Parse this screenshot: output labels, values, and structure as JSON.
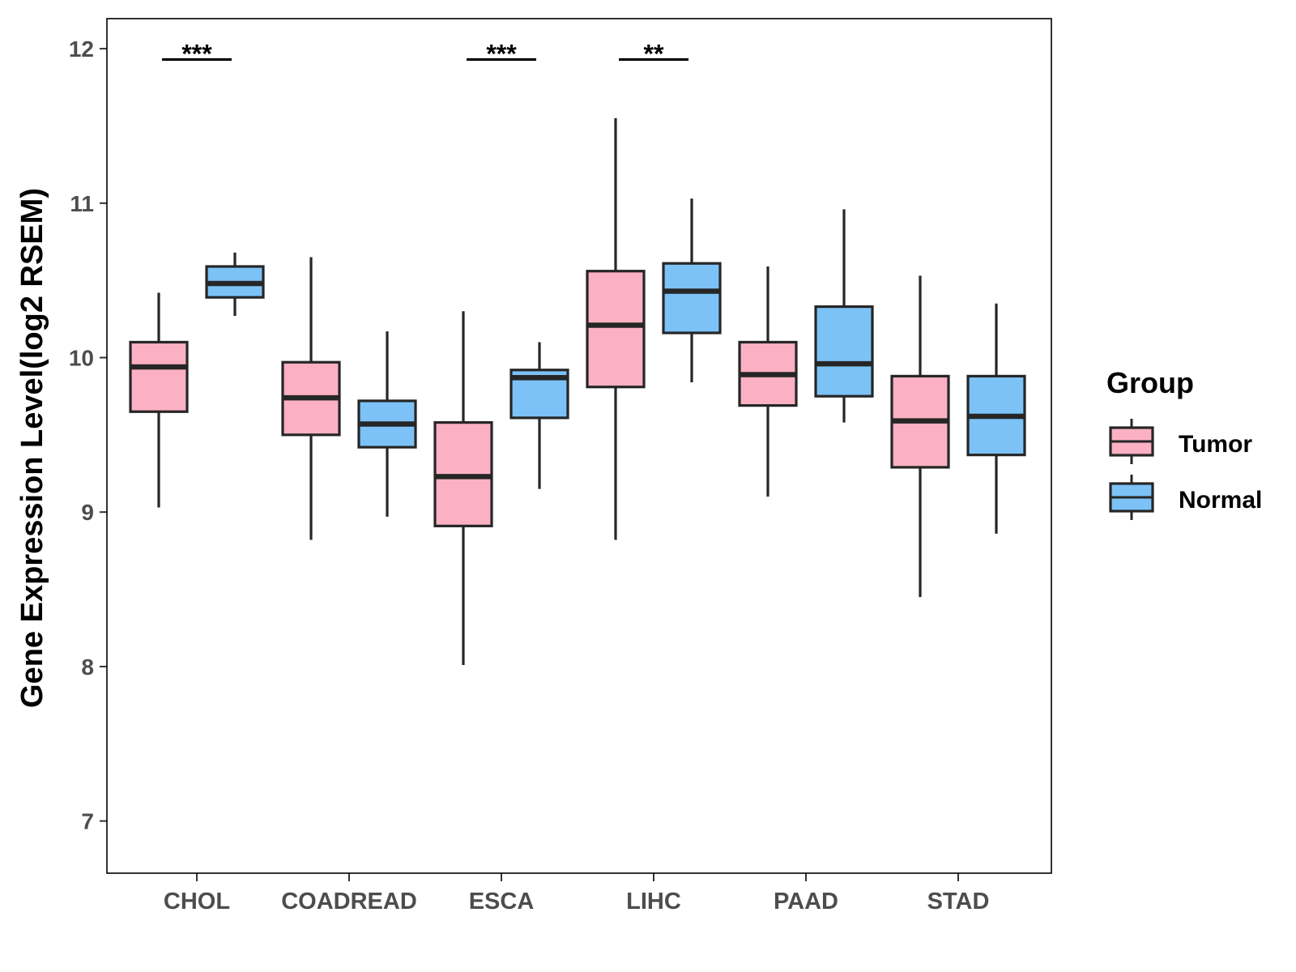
{
  "chart_data": {
    "type": "boxplot",
    "title": "",
    "xlabel": "",
    "ylabel": "Gene Expression Level(log2 RSEM)",
    "ylim": [
      6.65,
      12.2
    ],
    "yticks": [
      7,
      8,
      9,
      10,
      11,
      12
    ],
    "categories": [
      "CHOL",
      "COADREAD",
      "ESCA",
      "LIHC",
      "PAAD",
      "STAD"
    ],
    "legend": {
      "title": "Group",
      "position": "right",
      "entries": [
        {
          "name": "Tumor",
          "color": "#FBB1C3"
        },
        {
          "name": "Normal",
          "color": "#7CC2F7"
        }
      ]
    },
    "series": [
      {
        "name": "Tumor",
        "color": "#FBB1C3",
        "boxes": [
          {
            "category": "CHOL",
            "whisker_low": 9.03,
            "q1": 9.65,
            "median": 9.94,
            "q3": 10.1,
            "whisker_high": 10.42
          },
          {
            "category": "COADREAD",
            "whisker_low": 8.82,
            "q1": 9.5,
            "median": 9.74,
            "q3": 9.97,
            "whisker_high": 10.65
          },
          {
            "category": "ESCA",
            "whisker_low": 8.01,
            "q1": 8.91,
            "median": 9.23,
            "q3": 9.58,
            "whisker_high": 10.3
          },
          {
            "category": "LIHC",
            "whisker_low": 8.82,
            "q1": 9.81,
            "median": 10.21,
            "q3": 10.56,
            "whisker_high": 11.55
          },
          {
            "category": "PAAD",
            "whisker_low": 9.1,
            "q1": 9.69,
            "median": 9.89,
            "q3": 10.1,
            "whisker_high": 10.59
          },
          {
            "category": "STAD",
            "whisker_low": 8.45,
            "q1": 9.29,
            "median": 9.59,
            "q3": 9.88,
            "whisker_high": 10.53
          }
        ]
      },
      {
        "name": "Normal",
        "color": "#7CC2F7",
        "boxes": [
          {
            "category": "CHOL",
            "whisker_low": 10.27,
            "q1": 10.39,
            "median": 10.48,
            "q3": 10.59,
            "whisker_high": 10.68
          },
          {
            "category": "COADREAD",
            "whisker_low": 8.97,
            "q1": 9.42,
            "median": 9.57,
            "q3": 9.72,
            "whisker_high": 10.17
          },
          {
            "category": "ESCA",
            "whisker_low": 9.15,
            "q1": 9.61,
            "median": 9.87,
            "q3": 9.92,
            "whisker_high": 10.1
          },
          {
            "category": "LIHC",
            "whisker_low": 9.84,
            "q1": 10.16,
            "median": 10.43,
            "q3": 10.61,
            "whisker_high": 11.03
          },
          {
            "category": "PAAD",
            "whisker_low": 9.58,
            "q1": 9.75,
            "median": 9.96,
            "q3": 10.33,
            "whisker_high": 10.96
          },
          {
            "category": "STAD",
            "whisker_low": 8.86,
            "q1": 9.37,
            "median": 9.62,
            "q3": 9.88,
            "whisker_high": 10.35
          }
        ]
      }
    ],
    "significance": [
      {
        "category": "CHOL",
        "label": "***",
        "y": 11.93
      },
      {
        "category": "ESCA",
        "label": "***",
        "y": 11.93
      },
      {
        "category": "LIHC",
        "label": "**",
        "y": 11.93
      }
    ]
  }
}
